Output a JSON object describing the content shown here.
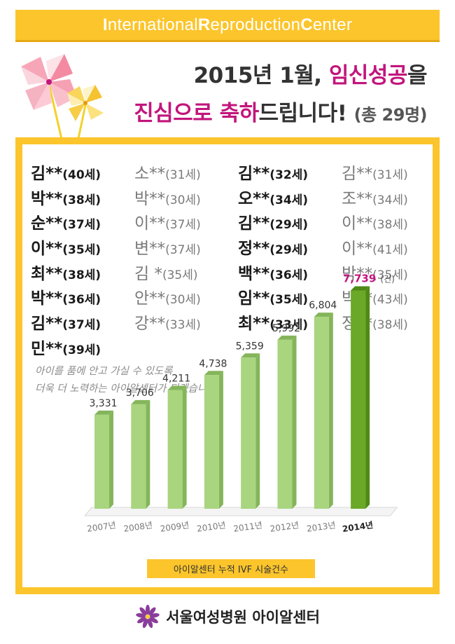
{
  "banner": {
    "parts": [
      {
        "cap": "I",
        "rest": "nternational "
      },
      {
        "cap": "R",
        "rest": "eproduction "
      },
      {
        "cap": "C",
        "rest": "enter"
      }
    ]
  },
  "headline": {
    "line1_prefix": "2015년 1월, ",
    "line1_accent": "임신성공",
    "line1_suffix": "을",
    "line2_accent": "진심으로 축하",
    "line2_suffix": "드립니다!",
    "line2_total": "(총 29명)"
  },
  "names": [
    {
      "name": "김**",
      "age": "(40세)",
      "style": "dark"
    },
    {
      "name": "소**",
      "age": "(31세)",
      "style": "light"
    },
    {
      "name": "김**",
      "age": "(32세)",
      "style": "dark"
    },
    {
      "name": "김**",
      "age": "(31세)",
      "style": "light"
    },
    {
      "name": "박**",
      "age": "(38세)",
      "style": "dark"
    },
    {
      "name": "박**",
      "age": "(30세)",
      "style": "light"
    },
    {
      "name": "오**",
      "age": "(34세)",
      "style": "dark"
    },
    {
      "name": "조**",
      "age": "(34세)",
      "style": "light"
    },
    {
      "name": "순**",
      "age": "(37세)",
      "style": "dark"
    },
    {
      "name": "이**",
      "age": "(37세)",
      "style": "light"
    },
    {
      "name": "김**",
      "age": "(29세)",
      "style": "dark"
    },
    {
      "name": "이**",
      "age": "(38세)",
      "style": "light"
    },
    {
      "name": "이**",
      "age": "(35세)",
      "style": "dark"
    },
    {
      "name": "변**",
      "age": "(37세)",
      "style": "light"
    },
    {
      "name": "정**",
      "age": "(29세)",
      "style": "dark"
    },
    {
      "name": "이**",
      "age": "(41세)",
      "style": "light"
    },
    {
      "name": "최**",
      "age": "(38세)",
      "style": "dark"
    },
    {
      "name": "김 *",
      "age": "(35세)",
      "style": "light"
    },
    {
      "name": "백**",
      "age": "(36세)",
      "style": "dark"
    },
    {
      "name": "박**",
      "age": "(35세)",
      "style": "light"
    },
    {
      "name": "박**",
      "age": "(36세)",
      "style": "dark"
    },
    {
      "name": "안**",
      "age": "(30세)",
      "style": "light"
    },
    {
      "name": "임**",
      "age": "(35세)",
      "style": "dark"
    },
    {
      "name": "박**",
      "age": "(43세)",
      "style": "light"
    },
    {
      "name": "김**",
      "age": "(37세)",
      "style": "dark"
    },
    {
      "name": "강**",
      "age": "(33세)",
      "style": "light"
    },
    {
      "name": "최**",
      "age": "(33세)",
      "style": "dark"
    },
    {
      "name": "정**",
      "age": "(38세)",
      "style": "light"
    },
    {
      "name": "민**",
      "age": "(39세)",
      "style": "dark"
    }
  ],
  "caption": {
    "line1": "아이를 품에 안고 가실 수 있도록",
    "line2": "더욱 더 노력하는 아이알센터가 되겠습니다."
  },
  "chart_data": {
    "type": "bar",
    "categories": [
      "2007년",
      "2008년",
      "2009년",
      "2010년",
      "2011년",
      "2012년",
      "2013년",
      "2014년"
    ],
    "values": [
      3331,
      3706,
      4211,
      4738,
      5359,
      5992,
      6804,
      7739
    ],
    "value_labels": [
      "3,331",
      "3,706",
      "4,211",
      "4,738",
      "5,359",
      "5,992",
      "6,804",
      "7,739"
    ],
    "unit": "(건)",
    "title": "아이알센터 누적 IVF 시술건수",
    "highlight_index": 7,
    "ylim": [
      0,
      8000
    ],
    "colors": {
      "bar": "#a8d57e",
      "bar_side": "#85b55a",
      "highlight": "#6aa827",
      "highlight_side": "#4f8a16",
      "highlight_label": "#c2157c"
    }
  },
  "footer": {
    "text": "서울여성병원 아이알센터",
    "logo_icon": "purple-flower-icon"
  },
  "colors": {
    "brand_yellow": "#fcc52c",
    "accent_magenta": "#c2157c"
  }
}
